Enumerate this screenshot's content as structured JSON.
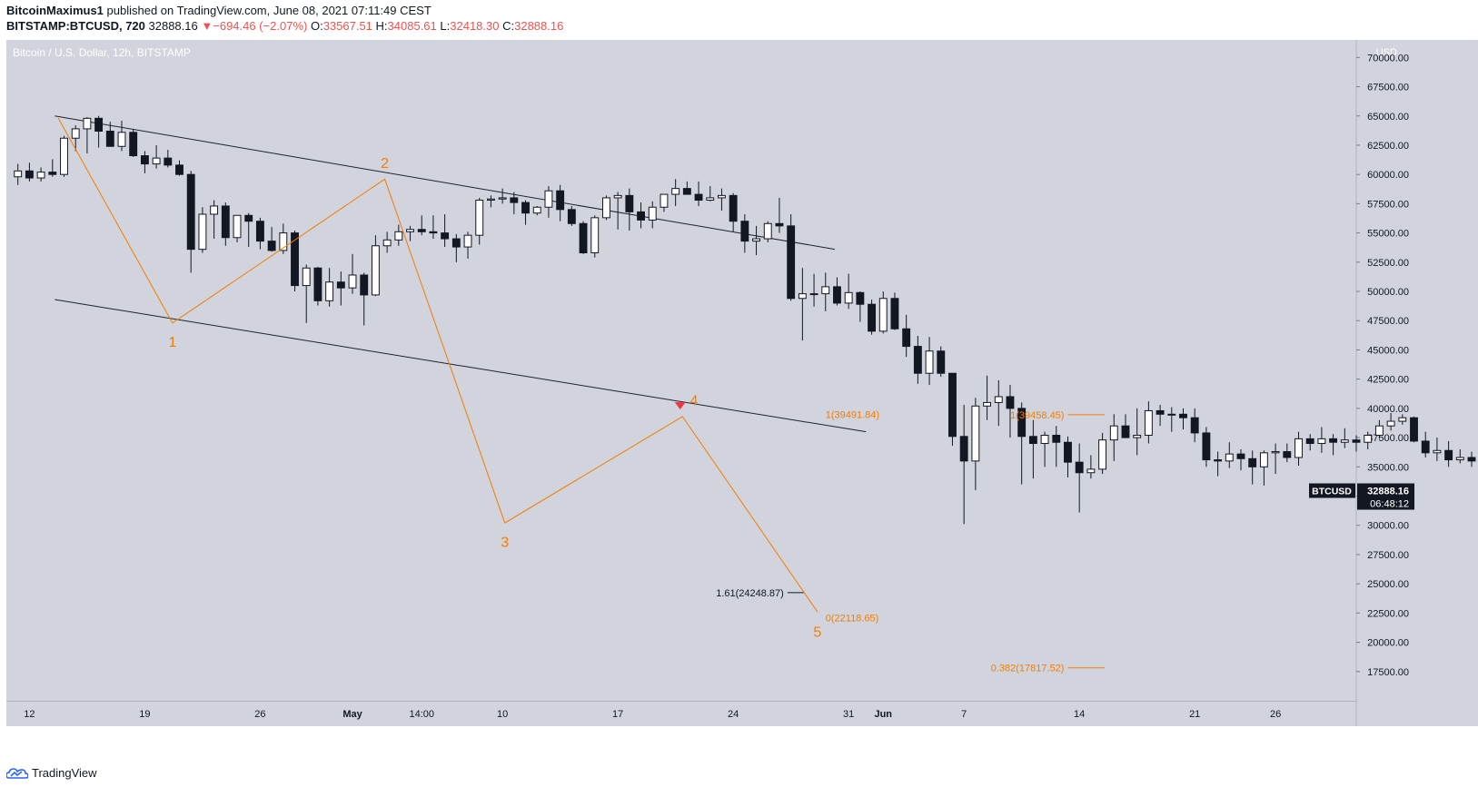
{
  "header": {
    "author": "BitcoinMaximus1",
    "published": " published on TradingView.com, June 08, 2021 07:11:49 CEST",
    "symbol": "BITSTAMP:BTCUSD, 720",
    "last": "32888.16",
    "change_arrow": "▼",
    "change": "−694.46 (−2.07%)",
    "o_label": "O:",
    "o_value": "33567.51",
    "h_label": "H:",
    "h_value": "34085.61",
    "l_label": "L:",
    "l_value": "32418.30",
    "c_label": "C:",
    "c_value": "32888.16"
  },
  "footer": {
    "logo_text": "TradingView"
  },
  "colors": {
    "plot_bg": "#d1d4dc",
    "bull_body": "#ffffff",
    "bear_body": "#131722",
    "wick": "#131722",
    "wave": "#f57c00",
    "channel": "#1e222d",
    "down_arrow": "#f23645",
    "price_tag_bg": "#131722"
  },
  "chart_data": {
    "type": "candlestick",
    "title": "Bitcoin / U.S. Dollar, 12h, BITSTAMP",
    "y_unit": "USD",
    "ylim": [
      15000,
      71500
    ],
    "y_ticks": [
      17500,
      20000,
      22500,
      25000,
      27500,
      30000,
      32500,
      35000,
      37500,
      40000,
      42500,
      45000,
      47500,
      50000,
      52500,
      55000,
      57500,
      60000,
      62500,
      65000,
      67500,
      70000
    ],
    "y_tick_labels": [
      "17500.00",
      "20000.00",
      "22500.00",
      "25000.00",
      "27500.00",
      "30000.00",
      "32500.00",
      "35000.00",
      "37500.00",
      "40000.00",
      "42500.00",
      "45000.00",
      "47500.00",
      "50000.00",
      "52500.00",
      "55000.00",
      "57500.00",
      "60000.00",
      "62500.00",
      "65000.00",
      "67500.00",
      "70000.00"
    ],
    "x_domain": [
      -1,
      116
    ],
    "x_ticks": [
      {
        "label": "12",
        "x": 1
      },
      {
        "label": "19",
        "x": 11
      },
      {
        "label": "26",
        "x": 21
      },
      {
        "label": "May",
        "x": 29
      },
      {
        "label": "14:00",
        "x": 35
      },
      {
        "label": "10",
        "x": 42
      },
      {
        "label": "17",
        "x": 52
      },
      {
        "label": "24",
        "x": 62
      },
      {
        "label": "31",
        "x": 72
      },
      {
        "label": "Jun",
        "x": 75
      },
      {
        "label": "7",
        "x": 82
      },
      {
        "label": "14",
        "x": 92
      },
      {
        "label": "21",
        "x": 102
      },
      {
        "label": "26",
        "x": 109
      }
    ],
    "candles": [
      [
        59800,
        60900,
        59100,
        60300
      ],
      [
        60300,
        61000,
        59400,
        59700
      ],
      [
        59700,
        60600,
        59400,
        60200
      ],
      [
        60200,
        61300,
        59800,
        60000
      ],
      [
        60000,
        63300,
        59800,
        63100
      ],
      [
        63100,
        64200,
        62000,
        63900
      ],
      [
        63900,
        64900,
        61800,
        64800
      ],
      [
        64800,
        65000,
        62300,
        63700
      ],
      [
        63700,
        64500,
        62400,
        62400
      ],
      [
        62400,
        64600,
        62000,
        63600
      ],
      [
        63600,
        63900,
        61500,
        61600
      ],
      [
        61600,
        62000,
        60100,
        60900
      ],
      [
        60900,
        62500,
        60500,
        61400
      ],
      [
        61400,
        62100,
        60600,
        60800
      ],
      [
        60800,
        61200,
        59900,
        60000
      ],
      [
        60000,
        60300,
        51600,
        53600
      ],
      [
        53600,
        57200,
        53300,
        56600
      ],
      [
        56600,
        57800,
        54500,
        57300
      ],
      [
        57300,
        57600,
        53900,
        54600
      ],
      [
        54600,
        56500,
        54200,
        56500
      ],
      [
        56500,
        56700,
        53800,
        56000
      ],
      [
        56000,
        56300,
        53600,
        54300
      ],
      [
        54300,
        55500,
        53400,
        53500
      ],
      [
        53500,
        55800,
        53200,
        55000
      ],
      [
        55000,
        55200,
        50000,
        50500
      ],
      [
        50500,
        52300,
        47300,
        52000
      ],
      [
        52000,
        52100,
        48800,
        49200
      ],
      [
        49200,
        52000,
        48700,
        50800
      ],
      [
        50800,
        51700,
        48800,
        50300
      ],
      [
        50300,
        53200,
        49800,
        51400
      ],
      [
        51400,
        51600,
        47100,
        49700
      ],
      [
        49700,
        54800,
        49600,
        53900
      ],
      [
        53900,
        55100,
        53300,
        54400
      ],
      [
        54400,
        55700,
        53900,
        55100
      ],
      [
        55100,
        55600,
        54300,
        55300
      ],
      [
        55300,
        56500,
        54800,
        55100
      ],
      [
        55100,
        56500,
        54500,
        55000
      ],
      [
        55000,
        56600,
        53800,
        54500
      ],
      [
        54500,
        54900,
        52500,
        53800
      ],
      [
        53800,
        55100,
        52800,
        54800
      ],
      [
        54800,
        58000,
        54000,
        57800
      ],
      [
        57800,
        58200,
        57200,
        57900
      ],
      [
        57900,
        58800,
        57500,
        58000
      ],
      [
        58000,
        58500,
        56600,
        57600
      ],
      [
        57600,
        57800,
        55700,
        56700
      ],
      [
        56700,
        57300,
        56500,
        57200
      ],
      [
        57200,
        59000,
        56300,
        58600
      ],
      [
        58600,
        59100,
        56000,
        57000
      ],
      [
        57000,
        57300,
        55600,
        55800
      ],
      [
        55800,
        56000,
        53200,
        53300
      ],
      [
        53300,
        56500,
        52900,
        56300
      ],
      [
        56300,
        58200,
        56100,
        58000
      ],
      [
        58000,
        58500,
        55300,
        58200
      ],
      [
        58200,
        58800,
        55200,
        56800
      ],
      [
        56800,
        57600,
        55400,
        56100
      ],
      [
        56100,
        57700,
        55400,
        57200
      ],
      [
        57200,
        58300,
        56800,
        58300
      ],
      [
        58300,
        59600,
        57300,
        58800
      ],
      [
        58800,
        59400,
        58500,
        58300
      ],
      [
        58300,
        59400,
        57300,
        57800
      ],
      [
        57800,
        59000,
        57700,
        58000
      ],
      [
        58000,
        58800,
        56900,
        58200
      ],
      [
        58200,
        58400,
        55100,
        56000
      ],
      [
        56000,
        56600,
        53300,
        54300
      ],
      [
        54300,
        55600,
        53100,
        54500
      ],
      [
        54500,
        56000,
        54200,
        55800
      ],
      [
        55800,
        58000,
        55000,
        55600
      ],
      [
        55600,
        56600,
        49200,
        49400
      ],
      [
        49400,
        52000,
        45800,
        49800
      ],
      [
        49800,
        51500,
        48700,
        49800
      ],
      [
        49800,
        51600,
        48300,
        50400
      ],
      [
        50400,
        51200,
        48800,
        49000
      ],
      [
        49000,
        51500,
        48500,
        49900
      ],
      [
        49900,
        50000,
        47400,
        48900
      ],
      [
        48900,
        49300,
        46300,
        46600
      ],
      [
        46600,
        50000,
        46400,
        49400
      ],
      [
        49400,
        49900,
        46700,
        46800
      ],
      [
        46800,
        48000,
        44400,
        45300
      ],
      [
        45300,
        46200,
        42100,
        43000
      ],
      [
        43000,
        46100,
        42000,
        44900
      ],
      [
        44900,
        45300,
        42700,
        43000
      ],
      [
        43000,
        43000,
        36800,
        37600
      ],
      [
        37600,
        40300,
        30100,
        35500
      ],
      [
        35500,
        40900,
        33000,
        40200
      ],
      [
        40200,
        42800,
        39000,
        40500
      ],
      [
        40500,
        42400,
        38500,
        41000
      ],
      [
        41000,
        42000,
        37500,
        40000
      ],
      [
        40000,
        40500,
        33500,
        37600
      ],
      [
        37600,
        39000,
        34000,
        37000
      ],
      [
        37000,
        38000,
        35000,
        37700
      ],
      [
        37700,
        38500,
        35000,
        37100
      ],
      [
        37100,
        37600,
        34100,
        35400
      ],
      [
        35400,
        37000,
        31100,
        34500
      ],
      [
        34500,
        36000,
        34000,
        34800
      ],
      [
        34800,
        37900,
        34400,
        37300
      ],
      [
        37300,
        39500,
        35500,
        38500
      ],
      [
        38500,
        39500,
        37600,
        37500
      ],
      [
        37500,
        40000,
        36000,
        37700
      ],
      [
        37700,
        40600,
        37000,
        39800
      ],
      [
        39800,
        40300,
        38500,
        39500
      ],
      [
        39500,
        40100,
        38000,
        39500
      ],
      [
        39500,
        40000,
        38200,
        39200
      ],
      [
        39200,
        40000,
        37100,
        37900
      ],
      [
        37900,
        38400,
        35000,
        35600
      ],
      [
        35600,
        36300,
        34200,
        35500
      ],
      [
        35500,
        37100,
        34900,
        36100
      ],
      [
        36100,
        36500,
        34700,
        35700
      ],
      [
        35700,
        36400,
        33500,
        35000
      ],
      [
        35000,
        36400,
        33400,
        36200
      ],
      [
        36200,
        37000,
        34400,
        36300
      ],
      [
        36300,
        37000,
        35400,
        35800
      ],
      [
        35800,
        38000,
        35100,
        37400
      ],
      [
        37400,
        37800,
        36400,
        37000
      ],
      [
        37000,
        38400,
        36200,
        37400
      ],
      [
        37400,
        37800,
        36000,
        37100
      ],
      [
        37100,
        38300,
        36600,
        37300
      ],
      [
        37300,
        37700,
        36300,
        37100
      ],
      [
        37100,
        38000,
        36500,
        37700
      ],
      [
        37700,
        39000,
        37400,
        38500
      ],
      [
        38500,
        39600,
        38100,
        38900
      ],
      [
        38900,
        39500,
        38600,
        39200
      ],
      [
        39200,
        39300,
        37100,
        37200
      ],
      [
        37200,
        38000,
        35800,
        36200
      ],
      [
        36200,
        37500,
        35500,
        36400
      ],
      [
        36400,
        37200,
        35000,
        35600
      ],
      [
        35600,
        36500,
        35300,
        35800
      ],
      [
        35800,
        36300,
        35000,
        35500
      ],
      [
        35500,
        36500,
        35200,
        36300
      ],
      [
        36300,
        37000,
        35300,
        35900
      ],
      [
        35900,
        36200,
        33700,
        33600
      ],
      [
        33600,
        34100,
        32400,
        32900
      ]
    ],
    "channel_upper": [
      [
        3.2,
        65000
      ],
      [
        70.8,
        53600
      ]
    ],
    "channel_lower": [
      [
        3.2,
        49300
      ],
      [
        73.5,
        38000
      ]
    ],
    "wave_path": [
      [
        3.5,
        64800
      ],
      [
        13.4,
        47300
      ],
      [
        31.8,
        59600
      ],
      [
        42.2,
        30200
      ],
      [
        57.6,
        39300
      ],
      [
        69.3,
        22600
      ]
    ],
    "wave_labels": [
      {
        "text": "1",
        "x": 13.4,
        "y": 45800
      },
      {
        "text": "2",
        "x": 31.8,
        "y": 61100
      },
      {
        "text": "3",
        "x": 42.2,
        "y": 28700
      },
      {
        "text": "4",
        "x": 58.6,
        "y": 40800
      },
      {
        "text": "5",
        "x": 69.3,
        "y": 21000
      }
    ],
    "fib_levels": [
      {
        "label": "1(39491.84)",
        "y": 39491.84,
        "x_from": 70,
        "x_to": 70,
        "align": "start",
        "line": false
      },
      {
        "label": "0(22118.65)",
        "y": 22118.65,
        "x_from": 70,
        "x_to": 70,
        "align": "start",
        "line": false
      },
      {
        "label": "1.61(24248.87)",
        "y": 24248.87,
        "x_from": 66.7,
        "x_to": 68.1,
        "align": "end",
        "line": true
      },
      {
        "label": "1(39458.45)",
        "y": 39458.45,
        "x_from": 91,
        "x_to": 94.2,
        "align": "end",
        "line": true
      },
      {
        "label": "0.382(17817.52)",
        "y": 17817.52,
        "x_from": 91,
        "x_to": 94.2,
        "align": "end",
        "line": true
      }
    ],
    "last_price": {
      "symbol": "BTCUSD",
      "price": "32888.16",
      "y": 32888.16,
      "countdown": "06:48:12"
    }
  }
}
